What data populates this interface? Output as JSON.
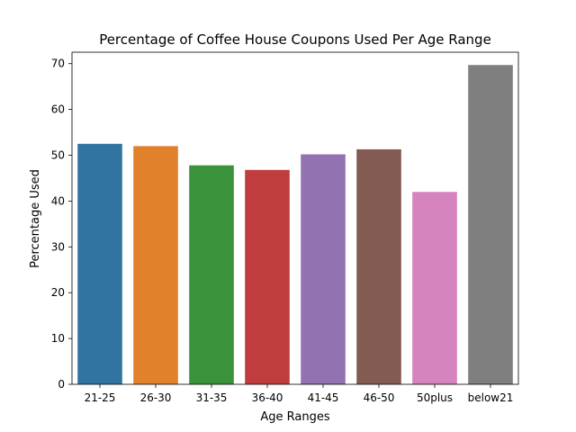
{
  "chart_data": {
    "type": "bar",
    "title": "Percentage of Coffee House Coupons Used Per Age Range",
    "xlabel": "Age Ranges",
    "ylabel": "Percentage Used",
    "categories": [
      "21-25",
      "26-30",
      "31-35",
      "36-40",
      "41-45",
      "46-50",
      "50plus",
      "below21"
    ],
    "values": [
      52.5,
      52.0,
      47.8,
      46.8,
      50.2,
      51.3,
      42.0,
      69.7
    ],
    "colors": [
      "#3274a1",
      "#e1812c",
      "#3a923a",
      "#c03d3e",
      "#9372b2",
      "#845b53",
      "#d684bd",
      "#7f7f7f"
    ],
    "ylim": [
      0,
      72.5
    ],
    "yticks": [
      0,
      10,
      20,
      30,
      40,
      50,
      60,
      70
    ],
    "grid": false,
    "legend": "none"
  }
}
